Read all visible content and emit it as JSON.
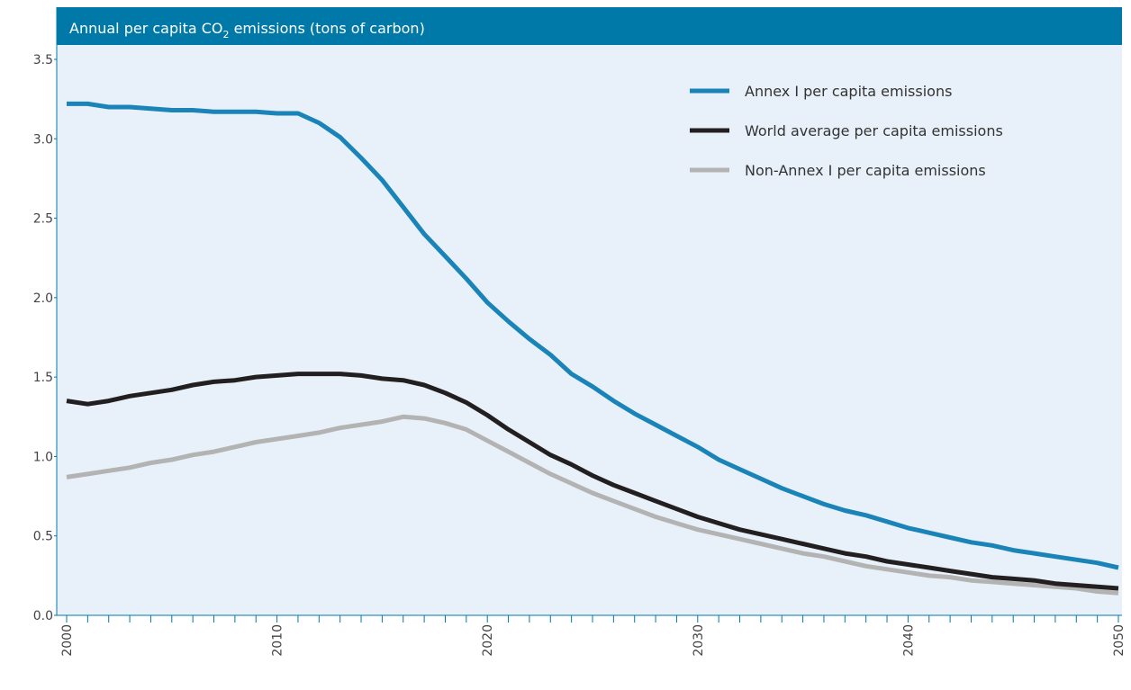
{
  "chart_data": {
    "type": "line",
    "title": {
      "prefix": "Annual per capita CO",
      "subscript": "2",
      "suffix": " emissions (tons of carbon)"
    },
    "xlabel": "",
    "ylabel": "",
    "xlim": [
      2000,
      2050
    ],
    "ylim": [
      0,
      3.5
    ],
    "y_ticks": [
      "0.0",
      "0.5",
      "1.0",
      "1.5",
      "2.0",
      "2.5",
      "3.0",
      "3.5"
    ],
    "x_ticks": [
      "2000",
      "2010",
      "2020",
      "2030",
      "2040",
      "2050"
    ],
    "grid": false,
    "legend_position": "top-right",
    "colors": {
      "title_bar": "#0078a8",
      "plot_background": "#e8f1f9",
      "axis": "#0078a8"
    },
    "x": [
      2000,
      2001,
      2002,
      2003,
      2004,
      2005,
      2006,
      2007,
      2008,
      2009,
      2010,
      2011,
      2012,
      2013,
      2014,
      2015,
      2016,
      2017,
      2018,
      2019,
      2020,
      2021,
      2022,
      2023,
      2024,
      2025,
      2026,
      2027,
      2028,
      2029,
      2030,
      2031,
      2032,
      2033,
      2034,
      2035,
      2036,
      2037,
      2038,
      2039,
      2040,
      2041,
      2042,
      2043,
      2044,
      2045,
      2046,
      2047,
      2048,
      2049,
      2050
    ],
    "series": [
      {
        "name": "Annex I per capita emissions",
        "color": "#1a84b8",
        "values": [
          3.22,
          3.22,
          3.2,
          3.2,
          3.19,
          3.18,
          3.18,
          3.17,
          3.17,
          3.17,
          3.16,
          3.16,
          3.1,
          3.01,
          2.88,
          2.74,
          2.57,
          2.4,
          2.26,
          2.12,
          1.97,
          1.85,
          1.74,
          1.64,
          1.52,
          1.44,
          1.35,
          1.27,
          1.2,
          1.13,
          1.06,
          0.98,
          0.92,
          0.86,
          0.8,
          0.75,
          0.7,
          0.66,
          0.63,
          0.59,
          0.55,
          0.52,
          0.49,
          0.46,
          0.44,
          0.41,
          0.39,
          0.37,
          0.35,
          0.33,
          0.3
        ]
      },
      {
        "name": "World average per capita emissions",
        "color": "#231f20",
        "values": [
          1.35,
          1.33,
          1.35,
          1.38,
          1.4,
          1.42,
          1.45,
          1.47,
          1.48,
          1.5,
          1.51,
          1.52,
          1.52,
          1.52,
          1.51,
          1.49,
          1.48,
          1.45,
          1.4,
          1.34,
          1.26,
          1.17,
          1.09,
          1.01,
          0.95,
          0.88,
          0.82,
          0.77,
          0.72,
          0.67,
          0.62,
          0.58,
          0.54,
          0.51,
          0.48,
          0.45,
          0.42,
          0.39,
          0.37,
          0.34,
          0.32,
          0.3,
          0.28,
          0.26,
          0.24,
          0.23,
          0.22,
          0.2,
          0.19,
          0.18,
          0.17
        ]
      },
      {
        "name": "Non-Annex I per capita emissions",
        "color": "#b3b3b3",
        "values": [
          0.87,
          0.89,
          0.91,
          0.93,
          0.96,
          0.98,
          1.01,
          1.03,
          1.06,
          1.09,
          1.11,
          1.13,
          1.15,
          1.18,
          1.2,
          1.22,
          1.25,
          1.24,
          1.21,
          1.17,
          1.1,
          1.03,
          0.96,
          0.89,
          0.83,
          0.77,
          0.72,
          0.67,
          0.62,
          0.58,
          0.54,
          0.51,
          0.48,
          0.45,
          0.42,
          0.39,
          0.37,
          0.34,
          0.31,
          0.29,
          0.27,
          0.25,
          0.24,
          0.22,
          0.21,
          0.2,
          0.19,
          0.18,
          0.17,
          0.15,
          0.14
        ]
      }
    ]
  }
}
